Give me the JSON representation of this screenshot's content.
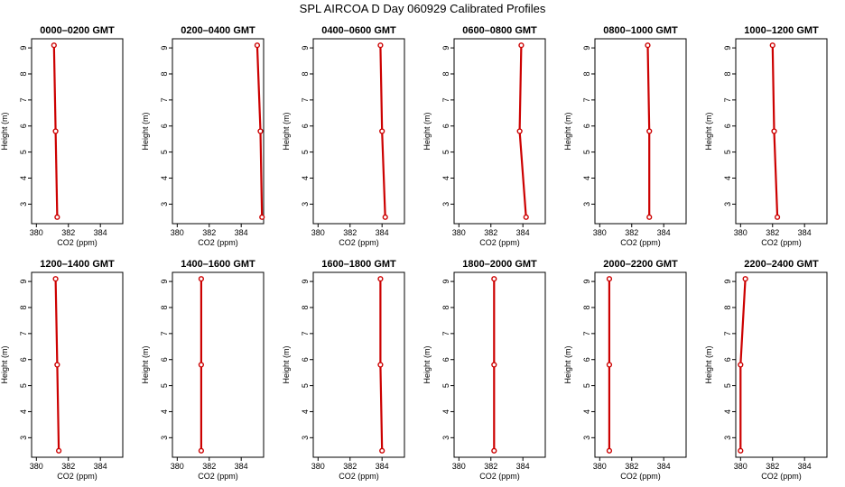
{
  "figure": {
    "title": "SPL AIRCOA D  Day 060929  Calibrated Profiles",
    "series_color": "#cc0000"
  },
  "chart_data": [
    {
      "type": "line",
      "title": "0000–0200 GMT",
      "xlabel": "CO2 (ppm)",
      "ylabel": "Height (m)",
      "xlim": [
        379.7,
        385.4
      ],
      "ylim": [
        2.25,
        9.35
      ],
      "xticks": [
        380,
        382,
        384
      ],
      "yticks": [
        3,
        4,
        5,
        6,
        7,
        8,
        9
      ],
      "heights": [
        9.1,
        5.8,
        2.5
      ],
      "values": [
        381.1,
        381.2,
        381.3
      ]
    },
    {
      "type": "line",
      "title": "0200–0400 GMT",
      "xlabel": "CO2 (ppm)",
      "ylabel": "Height (m)",
      "xlim": [
        379.7,
        385.4
      ],
      "ylim": [
        2.25,
        9.35
      ],
      "xticks": [
        380,
        382,
        384
      ],
      "yticks": [
        3,
        4,
        5,
        6,
        7,
        8,
        9
      ],
      "heights": [
        9.1,
        5.8,
        2.5
      ],
      "values": [
        385.0,
        385.2,
        385.3
      ]
    },
    {
      "type": "line",
      "title": "0400–0600 GMT",
      "xlabel": "CO2 (ppm)",
      "ylabel": "Height (m)",
      "xlim": [
        379.7,
        385.4
      ],
      "ylim": [
        2.25,
        9.35
      ],
      "xticks": [
        380,
        382,
        384
      ],
      "yticks": [
        3,
        4,
        5,
        6,
        7,
        8,
        9
      ],
      "heights": [
        9.1,
        5.8,
        2.5
      ],
      "values": [
        383.9,
        384.0,
        384.2
      ]
    },
    {
      "type": "line",
      "title": "0600–0800 GMT",
      "xlabel": "CO2 (ppm)",
      "ylabel": "Height (m)",
      "xlim": [
        379.7,
        385.4
      ],
      "ylim": [
        2.25,
        9.35
      ],
      "xticks": [
        380,
        382,
        384
      ],
      "yticks": [
        3,
        4,
        5,
        6,
        7,
        8,
        9
      ],
      "heights": [
        9.1,
        5.8,
        2.5
      ],
      "values": [
        383.9,
        383.8,
        384.2
      ]
    },
    {
      "type": "line",
      "title": "0800–1000 GMT",
      "xlabel": "CO2 (ppm)",
      "ylabel": "Height (m)",
      "xlim": [
        379.7,
        385.4
      ],
      "ylim": [
        2.25,
        9.35
      ],
      "xticks": [
        380,
        382,
        384
      ],
      "yticks": [
        3,
        4,
        5,
        6,
        7,
        8,
        9
      ],
      "heights": [
        9.1,
        5.8,
        2.5
      ],
      "values": [
        383.0,
        383.1,
        383.1
      ]
    },
    {
      "type": "line",
      "title": "1000–1200 GMT",
      "xlabel": "CO2 (ppm)",
      "ylabel": "Height (m)",
      "xlim": [
        379.7,
        385.4
      ],
      "ylim": [
        2.25,
        9.35
      ],
      "xticks": [
        380,
        382,
        384
      ],
      "yticks": [
        3,
        4,
        5,
        6,
        7,
        8,
        9
      ],
      "heights": [
        9.1,
        5.8,
        2.5
      ],
      "values": [
        382.0,
        382.1,
        382.3
      ]
    },
    {
      "type": "line",
      "title": "1200–1400 GMT",
      "xlabel": "CO2 (ppm)",
      "ylabel": "Height (m)",
      "xlim": [
        379.7,
        385.4
      ],
      "ylim": [
        2.25,
        9.35
      ],
      "xticks": [
        380,
        382,
        384
      ],
      "yticks": [
        3,
        4,
        5,
        6,
        7,
        8,
        9
      ],
      "heights": [
        9.1,
        5.8,
        2.5
      ],
      "values": [
        381.2,
        381.3,
        381.4
      ]
    },
    {
      "type": "line",
      "title": "1400–1600 GMT",
      "xlabel": "CO2 (ppm)",
      "ylabel": "Height (m)",
      "xlim": [
        379.7,
        385.4
      ],
      "ylim": [
        2.25,
        9.35
      ],
      "xticks": [
        380,
        382,
        384
      ],
      "yticks": [
        3,
        4,
        5,
        6,
        7,
        8,
        9
      ],
      "heights": [
        9.1,
        5.8,
        2.5
      ],
      "values": [
        381.5,
        381.5,
        381.5
      ]
    },
    {
      "type": "line",
      "title": "1600–1800 GMT",
      "xlabel": "CO2 (ppm)",
      "ylabel": "Height (m)",
      "xlim": [
        379.7,
        385.4
      ],
      "ylim": [
        2.25,
        9.35
      ],
      "xticks": [
        380,
        382,
        384
      ],
      "yticks": [
        3,
        4,
        5,
        6,
        7,
        8,
        9
      ],
      "heights": [
        9.1,
        5.8,
        2.5
      ],
      "values": [
        383.9,
        383.9,
        384.0
      ]
    },
    {
      "type": "line",
      "title": "1800–2000 GMT",
      "xlabel": "CO2 (ppm)",
      "ylabel": "Height (m)",
      "xlim": [
        379.7,
        385.4
      ],
      "ylim": [
        2.25,
        9.35
      ],
      "xticks": [
        380,
        382,
        384
      ],
      "yticks": [
        3,
        4,
        5,
        6,
        7,
        8,
        9
      ],
      "heights": [
        9.1,
        5.8,
        2.5
      ],
      "values": [
        382.2,
        382.2,
        382.2
      ]
    },
    {
      "type": "line",
      "title": "2000–2200 GMT",
      "xlabel": "CO2 (ppm)",
      "ylabel": "Height (m)",
      "xlim": [
        379.7,
        385.4
      ],
      "ylim": [
        2.25,
        9.35
      ],
      "xticks": [
        380,
        382,
        384
      ],
      "yticks": [
        3,
        4,
        5,
        6,
        7,
        8,
        9
      ],
      "heights": [
        9.1,
        5.8,
        2.5
      ],
      "values": [
        380.6,
        380.6,
        380.6
      ]
    },
    {
      "type": "line",
      "title": "2200–2400 GMT",
      "xlabel": "CO2 (ppm)",
      "ylabel": "Height (m)",
      "xlim": [
        379.7,
        385.4
      ],
      "ylim": [
        2.25,
        9.35
      ],
      "xticks": [
        380,
        382,
        384
      ],
      "yticks": [
        3,
        4,
        5,
        6,
        7,
        8,
        9
      ],
      "heights": [
        9.1,
        5.8,
        2.5
      ],
      "values": [
        380.3,
        380.0,
        380.0
      ]
    }
  ]
}
